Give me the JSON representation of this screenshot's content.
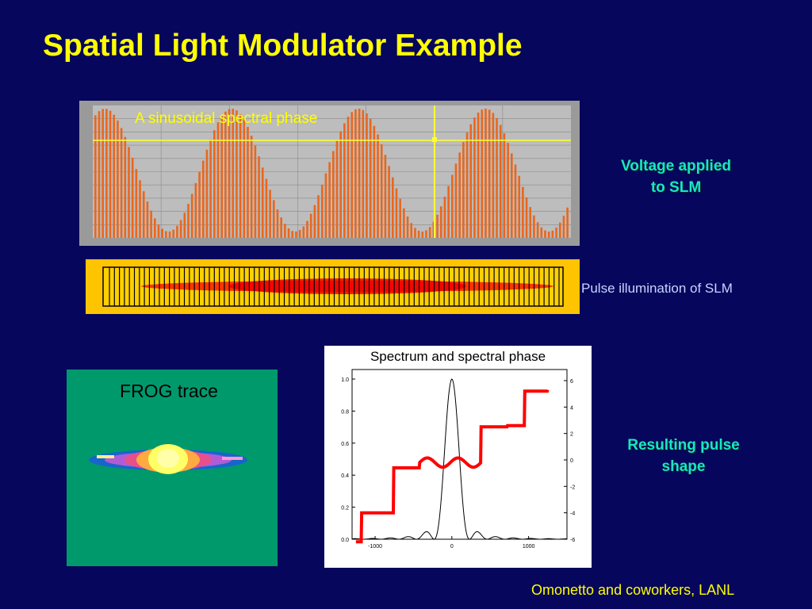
{
  "title": "Spatial Light Modulator Example",
  "voltage_plot": {
    "annotation": "A sinusoidal spectral phase",
    "cycles": 3.75
  },
  "voltage_label": [
    "Voltage applied",
    "to SLM"
  ],
  "slm_label": "Pulse illumination of SLM",
  "frog_label": "FROG trace",
  "spectrum": {
    "title": "Spectrum and spectral phase",
    "y_left_ticks": [
      "0.0",
      "0.2",
      "0.4",
      "0.6",
      "0.8",
      "1.0"
    ],
    "y_right_ticks": [
      "-6",
      "-4",
      "-2",
      "0",
      "2",
      "4",
      "6"
    ],
    "x_ticks": [
      "-1000",
      "0",
      "1000"
    ]
  },
  "pulse_shape_label": [
    "Resulting pulse",
    "shape"
  ],
  "credit": "Omonetto and coworkers, LANL",
  "colors": {
    "background": "#06065c",
    "title": "#ffff00",
    "cyan_label": "#19e6c0",
    "bars": "#e8671e",
    "slm_frame": "#ffc400",
    "frog_bg": "#00996b",
    "phase": "#ff0000"
  }
}
